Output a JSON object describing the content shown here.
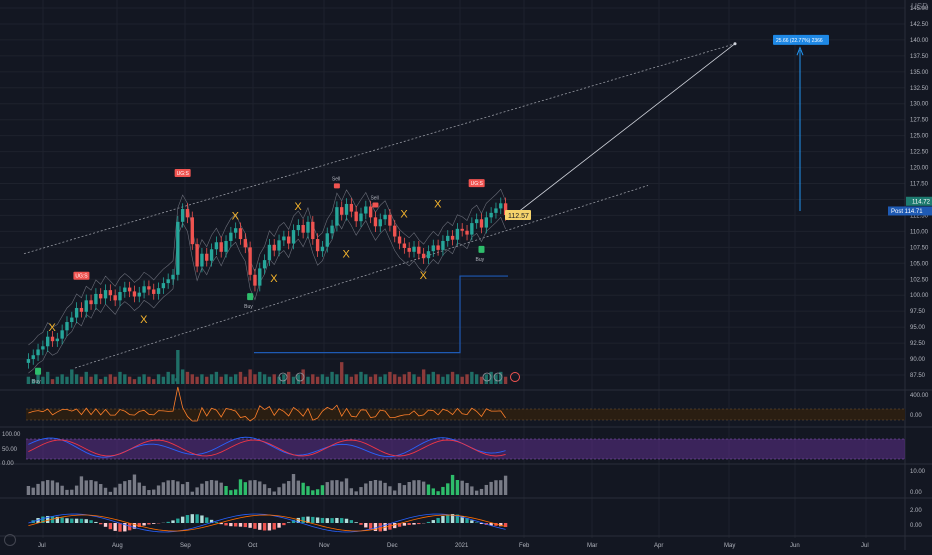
{
  "window": {
    "currency": "USD"
  },
  "colors": {
    "background": "#131722",
    "grid": "#1e222d",
    "up": "#26a69a",
    "down": "#ef5350",
    "line": "#9598a1",
    "step": "#2962ff",
    "volume_step": "#1e5ab4",
    "measure": "#2196f3",
    "cci": "#ff7f2a",
    "rsi_band": "#5d2f8a",
    "rsi_blue": "#2962ff",
    "rsi_red": "#f23645",
    "buy": "#2ebd6b",
    "sell": "#f05350",
    "x_marker": "#f7b52c",
    "price_label": "#f5d36b"
  },
  "chart_data": [
    {
      "type": "candlestick",
      "pane": "price",
      "ylim": [
        87.5,
        145.0
      ],
      "y_ticks": [
        "145.00",
        "142.50",
        "140.00",
        "137.50",
        "135.00",
        "132.50",
        "130.00",
        "127.50",
        "125.00",
        "122.50",
        "120.00",
        "117.50",
        "115.00",
        "112.50",
        "110.00",
        "107.50",
        "105.00",
        "102.50",
        "100.00",
        "97.50",
        "95.00",
        "92.50",
        "90.00",
        "87.50"
      ],
      "x_ticks": [
        "Jul",
        "Aug",
        "Sep",
        "Oct",
        "Nov",
        "Dec",
        "2021",
        "Feb",
        "Mar",
        "Apr",
        "May",
        "Jun",
        "Jul"
      ],
      "last_price_label": "112.57",
      "axis_badges": [
        {
          "text": "114.72"
        },
        {
          "text": "Post 114.71"
        }
      ],
      "measure_label": "25.66 (22.77%) 2366",
      "closes": [
        90.0,
        90.6,
        91.5,
        92.0,
        93.5,
        92.8,
        93.2,
        94.5,
        95.8,
        96.5,
        98.0,
        97.4,
        99.2,
        98.6,
        100.2,
        99.5,
        100.8,
        100.0,
        99.2,
        100.5,
        101.2,
        100.6,
        99.8,
        100.4,
        101.4,
        100.9,
        100.2,
        101.1,
        101.9,
        102.5,
        103.2,
        111.5,
        113.5,
        112.2,
        108.0,
        104.5,
        106.5,
        105.4,
        107.2,
        108.3,
        106.8,
        108.5,
        109.8,
        110.5,
        108.8,
        107.5,
        103.2,
        101.5,
        104.2,
        105.5,
        107.9,
        107.0,
        108.6,
        109.2,
        108.1,
        110.2,
        111.0,
        109.8,
        111.5,
        108.8,
        106.9,
        107.6,
        109.7,
        110.9,
        113.8,
        112.6,
        114.3,
        113.1,
        111.6,
        112.8,
        113.9,
        112.2,
        110.8,
        111.9,
        112.6,
        110.9,
        109.2,
        108.1,
        107.4,
        106.8,
        107.6,
        106.5,
        105.8,
        106.9,
        107.8,
        107.1,
        108.5,
        109.3,
        108.7,
        110.4,
        110.1,
        109.5,
        111.3,
        111.9,
        110.6,
        112.2,
        112.9,
        113.6,
        114.4,
        112.57
      ],
      "markers": {
        "buy": [
          {
            "label": "Buy",
            "i": 2
          },
          {
            "label": "Buy",
            "i": 46
          },
          {
            "label": "Buy",
            "i": 94
          }
        ],
        "sell": [
          {
            "label": "Sell",
            "i": 64
          },
          {
            "label": "Sell",
            "i": 72
          }
        ],
        "ugs": [
          {
            "label": "UG:S",
            "i": 11
          },
          {
            "label": "UG:S",
            "i": 32
          },
          {
            "label": "UG:S",
            "i": 93
          }
        ],
        "x": [
          {
            "label": "X",
            "i": 5,
            "y": 95.0
          },
          {
            "label": "X",
            "i": 24,
            "y": 96.3
          },
          {
            "label": "X",
            "i": 43,
            "y": 112.5
          },
          {
            "label": "X",
            "i": 51,
            "y": 102.7
          },
          {
            "label": "X",
            "i": 56,
            "y": 114.0
          },
          {
            "label": "X",
            "i": 66,
            "y": 106.5
          },
          {
            "label": "X",
            "i": 78,
            "y": 112.8
          },
          {
            "label": "X",
            "i": 82,
            "y": 103.2
          },
          {
            "label": "X",
            "i": 85,
            "y": 114.4
          }
        ]
      }
    },
    {
      "type": "bar",
      "pane": "volume",
      "values": [
        3,
        2,
        4,
        3,
        5,
        2,
        3,
        4,
        3,
        6,
        4,
        3,
        5,
        3,
        4,
        2,
        3,
        4,
        3,
        5,
        4,
        3,
        2,
        3,
        4,
        3,
        2,
        4,
        3,
        5,
        4,
        14,
        6,
        5,
        4,
        3,
        4,
        3,
        4,
        5,
        3,
        4,
        3,
        4,
        5,
        3,
        6,
        4,
        5,
        4,
        3,
        4,
        3,
        4,
        5,
        3,
        4,
        6,
        3,
        4,
        3,
        4,
        3,
        5,
        4,
        9,
        4,
        3,
        4,
        5,
        4,
        3,
        4,
        3,
        4,
        5,
        4,
        3,
        4,
        5,
        4,
        3,
        6,
        4,
        5,
        4,
        3,
        4,
        5,
        4,
        3,
        4,
        5,
        4,
        3,
        4,
        5,
        4,
        5,
        3
      ]
    },
    {
      "type": "line",
      "pane": "cci",
      "y_ticks": [
        "400.00",
        "0.00"
      ]
    },
    {
      "type": "line",
      "pane": "rsi",
      "y_ticks": [
        "100.00",
        "50.00",
        "0.00"
      ]
    },
    {
      "type": "bar",
      "pane": "momentum",
      "y_ticks": [
        "10.00",
        "0.00"
      ]
    },
    {
      "type": "bar",
      "pane": "macd",
      "y_ticks": [
        "2.00",
        "0.00"
      ]
    }
  ]
}
